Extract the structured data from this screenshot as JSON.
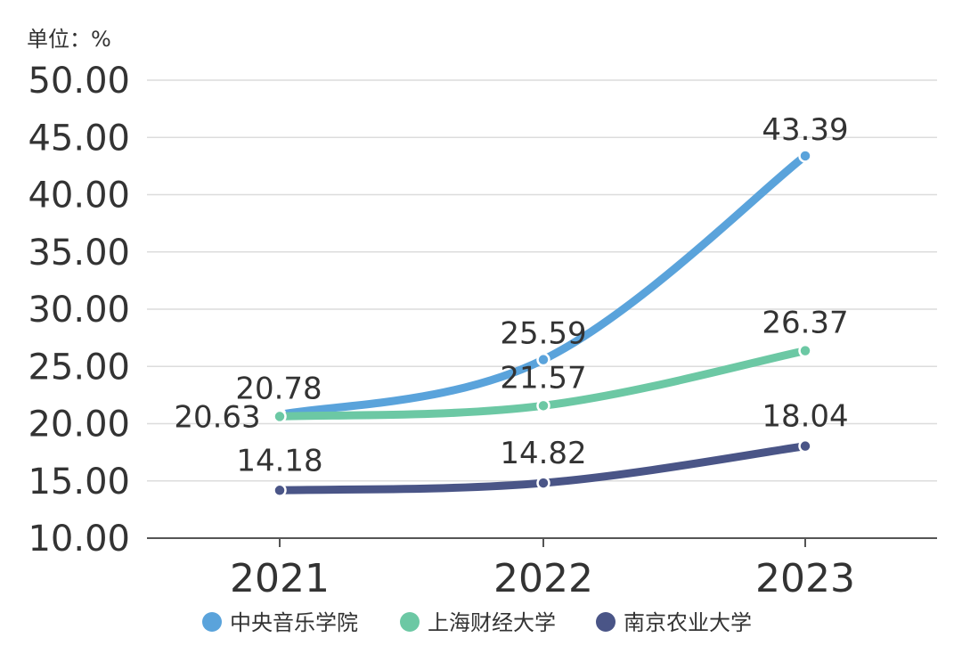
{
  "chart_data": {
    "type": "line",
    "unit_label": "单位：%",
    "categories": [
      "2021",
      "2022",
      "2023"
    ],
    "ylim": [
      10,
      50
    ],
    "yticks": [
      "10.00",
      "15.00",
      "20.00",
      "25.00",
      "30.00",
      "35.00",
      "40.00",
      "45.00",
      "50.00"
    ],
    "ytick_values": [
      10,
      15,
      20,
      25,
      30,
      35,
      40,
      45,
      50
    ],
    "grid": true,
    "legend_position": "bottom",
    "series": [
      {
        "name": "中央音乐学院",
        "color": "#5aa3db",
        "values": [
          20.78,
          25.59,
          43.39
        ],
        "labels": [
          "20.78",
          "25.59",
          "43.39"
        ]
      },
      {
        "name": "上海财经大学",
        "color": "#6cc8a4",
        "values": [
          20.63,
          21.57,
          26.37
        ],
        "labels": [
          "20.63",
          "21.57",
          "26.37"
        ]
      },
      {
        "name": "南京农业大学",
        "color": "#4a5587",
        "values": [
          14.18,
          14.82,
          18.04
        ],
        "labels": [
          "14.18",
          "14.82",
          "18.04"
        ]
      }
    ]
  }
}
